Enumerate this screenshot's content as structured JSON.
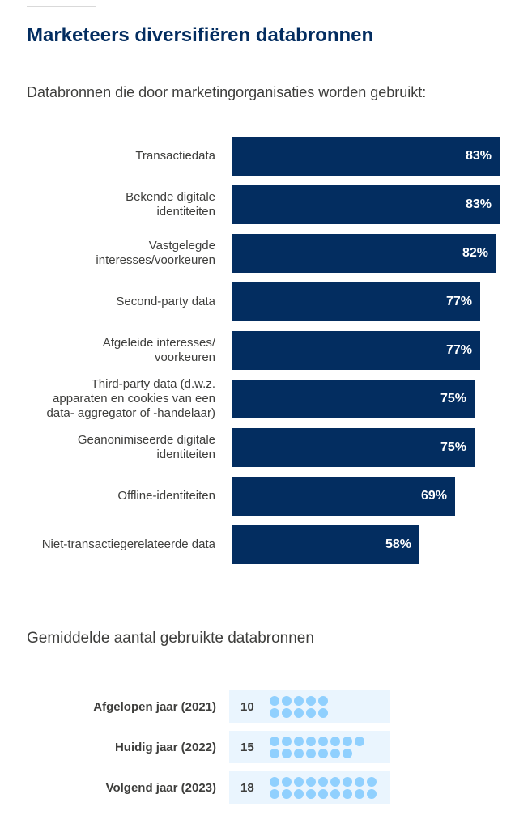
{
  "title": "Marketeers diversifiëren databronnen",
  "subtitle": "Databronnen die door marketingorganisaties worden gebruikt:",
  "colors": {
    "bar": "#032d60",
    "dot": "#90d0fe",
    "dot_box": "#eaf5fe",
    "title": "#032d60"
  },
  "chart_data": [
    {
      "type": "bar",
      "orientation": "horizontal",
      "title": "Databronnen die door marketingorganisaties worden gebruikt:",
      "categories": [
        [
          "Transactiedata"
        ],
        [
          "Bekende digitale",
          "identiteiten"
        ],
        [
          "Vastgelegde",
          "interesses/voorkeuren"
        ],
        [
          "Second-party data"
        ],
        [
          "Afgeleide interesses/",
          "voorkeuren"
        ],
        [
          "Third-party data (d.w.z.",
          "apparaten en cookies van een",
          "data- aggregator of -handelaar)"
        ],
        [
          "Geanonimiseerde digitale",
          "identiteiten"
        ],
        [
          "Offline-identiteiten"
        ],
        [
          "Niet-transactiegerelateerde data"
        ]
      ],
      "values": [
        83,
        83,
        82,
        77,
        77,
        75,
        75,
        69,
        58
      ],
      "value_labels": [
        "83%",
        "83%",
        "82%",
        "77%",
        "77%",
        "75%",
        "75%",
        "69%",
        "58%"
      ],
      "unit": "%",
      "xlim": [
        0,
        100
      ]
    },
    {
      "type": "pictogram",
      "title": "Gemiddelde aantal gebruikte databronnen",
      "categories": [
        "Afgelopen jaar (2021)",
        "Huidig jaar (2022)",
        "Volgend jaar (2023)"
      ],
      "values": [
        10,
        15,
        18
      ],
      "value_labels": [
        "10",
        "15",
        "18"
      ]
    }
  ]
}
